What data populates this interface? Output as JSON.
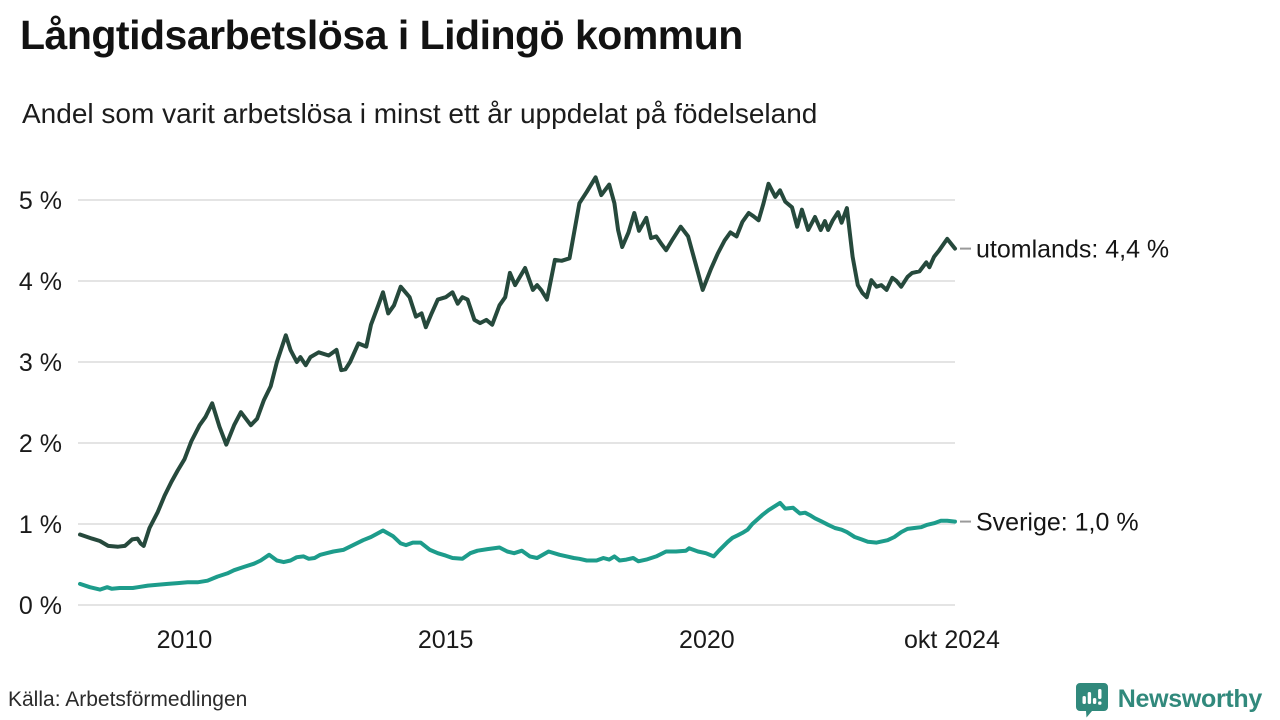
{
  "title": "Långtidsarbetslösa i Lidingö kommun",
  "subtitle": "Andel som varit arbetslösa i minst ett år uppdelat på födelseland",
  "source": "Källa: Arbetsförmedlingen",
  "branding": {
    "name": "Newsworthy",
    "color": "#31897c"
  },
  "chart_data": {
    "type": "line",
    "title": "Långtidsarbetslösa i Lidingö kommun",
    "subtitle": "Andel som varit arbetslösa i minst ett år uppdelat på födelseland",
    "xlabel": "",
    "ylabel": "",
    "grid": "horizontal",
    "grid_color": "#e4e4e4",
    "axis_text_color": "#1a1a1a",
    "x_range": [
      2008.0,
      2024.75
    ],
    "y_range": [
      0,
      5.4
    ],
    "x_ticks": [
      {
        "value": 2010,
        "label": "2010"
      },
      {
        "value": 2015,
        "label": "2015"
      },
      {
        "value": 2020,
        "label": "2020"
      },
      {
        "value": 2024.75,
        "label": "okt 2024"
      }
    ],
    "y_ticks": [
      {
        "value": 0,
        "label": "0 %"
      },
      {
        "value": 1,
        "label": "1 %"
      },
      {
        "value": 2,
        "label": "2 %"
      },
      {
        "value": 3,
        "label": "3 %"
      },
      {
        "value": 4,
        "label": "4 %"
      },
      {
        "value": 5,
        "label": "5 %"
      }
    ],
    "legend_position": "right-of-line-end",
    "series": [
      {
        "name": "utomlands",
        "end_label": "utomlands: 4,4 %",
        "last_value_text": "4,4 %",
        "color": "#26493c",
        "points": [
          [
            2008.0,
            0.87
          ],
          [
            2008.23,
            0.82
          ],
          [
            2008.38,
            0.79
          ],
          [
            2008.54,
            0.73
          ],
          [
            2008.73,
            0.72
          ],
          [
            2008.86,
            0.73
          ],
          [
            2009.0,
            0.81
          ],
          [
            2009.1,
            0.82
          ],
          [
            2009.16,
            0.76
          ],
          [
            2009.22,
            0.73
          ],
          [
            2009.33,
            0.95
          ],
          [
            2009.49,
            1.15
          ],
          [
            2009.62,
            1.35
          ],
          [
            2009.75,
            1.52
          ],
          [
            2009.87,
            1.66
          ],
          [
            2010.0,
            1.8
          ],
          [
            2010.13,
            2.02
          ],
          [
            2010.29,
            2.22
          ],
          [
            2010.4,
            2.32
          ],
          [
            2010.53,
            2.49
          ],
          [
            2010.67,
            2.2
          ],
          [
            2010.8,
            1.98
          ],
          [
            2010.95,
            2.22
          ],
          [
            2011.08,
            2.38
          ],
          [
            2011.27,
            2.22
          ],
          [
            2011.39,
            2.3
          ],
          [
            2011.52,
            2.53
          ],
          [
            2011.65,
            2.7
          ],
          [
            2011.77,
            3.0
          ],
          [
            2011.94,
            3.33
          ],
          [
            2012.03,
            3.15
          ],
          [
            2012.15,
            3.0
          ],
          [
            2012.22,
            3.06
          ],
          [
            2012.32,
            2.96
          ],
          [
            2012.41,
            3.06
          ],
          [
            2012.57,
            3.12
          ],
          [
            2012.76,
            3.08
          ],
          [
            2012.91,
            3.15
          ],
          [
            2013.0,
            2.9
          ],
          [
            2013.08,
            2.91
          ],
          [
            2013.17,
            3.0
          ],
          [
            2013.33,
            3.23
          ],
          [
            2013.48,
            3.19
          ],
          [
            2013.57,
            3.46
          ],
          [
            2013.71,
            3.7
          ],
          [
            2013.8,
            3.86
          ],
          [
            2013.9,
            3.6
          ],
          [
            2014.01,
            3.7
          ],
          [
            2014.14,
            3.93
          ],
          [
            2014.31,
            3.8
          ],
          [
            2014.43,
            3.56
          ],
          [
            2014.54,
            3.6
          ],
          [
            2014.62,
            3.43
          ],
          [
            2014.73,
            3.6
          ],
          [
            2014.85,
            3.77
          ],
          [
            2015.0,
            3.8
          ],
          [
            2015.13,
            3.86
          ],
          [
            2015.23,
            3.72
          ],
          [
            2015.32,
            3.8
          ],
          [
            2015.42,
            3.77
          ],
          [
            2015.55,
            3.52
          ],
          [
            2015.66,
            3.48
          ],
          [
            2015.78,
            3.52
          ],
          [
            2015.89,
            3.46
          ],
          [
            2016.03,
            3.7
          ],
          [
            2016.14,
            3.8
          ],
          [
            2016.23,
            4.1
          ],
          [
            2016.33,
            3.95
          ],
          [
            2016.42,
            4.05
          ],
          [
            2016.52,
            4.16
          ],
          [
            2016.67,
            3.89
          ],
          [
            2016.75,
            3.95
          ],
          [
            2016.84,
            3.88
          ],
          [
            2016.94,
            3.77
          ],
          [
            2017.09,
            4.26
          ],
          [
            2017.22,
            4.25
          ],
          [
            2017.37,
            4.28
          ],
          [
            2017.56,
            4.96
          ],
          [
            2017.7,
            5.1
          ],
          [
            2017.87,
            5.28
          ],
          [
            2017.98,
            5.06
          ],
          [
            2018.13,
            5.19
          ],
          [
            2018.23,
            4.96
          ],
          [
            2018.3,
            4.63
          ],
          [
            2018.38,
            4.42
          ],
          [
            2018.5,
            4.6
          ],
          [
            2018.61,
            4.84
          ],
          [
            2018.7,
            4.62
          ],
          [
            2018.84,
            4.78
          ],
          [
            2018.93,
            4.53
          ],
          [
            2019.03,
            4.55
          ],
          [
            2019.14,
            4.45
          ],
          [
            2019.22,
            4.38
          ],
          [
            2019.35,
            4.52
          ],
          [
            2019.5,
            4.67
          ],
          [
            2019.64,
            4.55
          ],
          [
            2019.79,
            4.2
          ],
          [
            2019.92,
            3.89
          ],
          [
            2020.08,
            4.15
          ],
          [
            2020.21,
            4.34
          ],
          [
            2020.34,
            4.5
          ],
          [
            2020.45,
            4.6
          ],
          [
            2020.57,
            4.55
          ],
          [
            2020.68,
            4.73
          ],
          [
            2020.8,
            4.84
          ],
          [
            2020.89,
            4.8
          ],
          [
            2020.99,
            4.75
          ],
          [
            2021.08,
            4.95
          ],
          [
            2021.18,
            5.2
          ],
          [
            2021.31,
            5.04
          ],
          [
            2021.4,
            5.12
          ],
          [
            2021.5,
            4.98
          ],
          [
            2021.63,
            4.91
          ],
          [
            2021.73,
            4.67
          ],
          [
            2021.82,
            4.88
          ],
          [
            2021.94,
            4.63
          ],
          [
            2022.07,
            4.79
          ],
          [
            2022.18,
            4.63
          ],
          [
            2022.26,
            4.74
          ],
          [
            2022.32,
            4.63
          ],
          [
            2022.41,
            4.75
          ],
          [
            2022.51,
            4.85
          ],
          [
            2022.58,
            4.72
          ],
          [
            2022.68,
            4.9
          ],
          [
            2022.79,
            4.3
          ],
          [
            2022.89,
            3.95
          ],
          [
            2022.98,
            3.85
          ],
          [
            2023.06,
            3.8
          ],
          [
            2023.15,
            4.01
          ],
          [
            2023.25,
            3.93
          ],
          [
            2023.34,
            3.95
          ],
          [
            2023.44,
            3.89
          ],
          [
            2023.55,
            4.04
          ],
          [
            2023.63,
            4.0
          ],
          [
            2023.72,
            3.93
          ],
          [
            2023.84,
            4.05
          ],
          [
            2023.93,
            4.1
          ],
          [
            2024.07,
            4.12
          ],
          [
            2024.2,
            4.23
          ],
          [
            2024.26,
            4.17
          ],
          [
            2024.35,
            4.3
          ],
          [
            2024.45,
            4.38
          ],
          [
            2024.6,
            4.52
          ],
          [
            2024.75,
            4.4
          ]
        ]
      },
      {
        "name": "Sverige",
        "end_label": "Sverige: 1,0 %",
        "last_value_text": "1,0 %",
        "color": "#1d9c8b",
        "points": [
          [
            2008.0,
            0.26
          ],
          [
            2008.19,
            0.22
          ],
          [
            2008.38,
            0.19
          ],
          [
            2008.52,
            0.22
          ],
          [
            2008.61,
            0.2
          ],
          [
            2008.76,
            0.21
          ],
          [
            2009.01,
            0.21
          ],
          [
            2009.11,
            0.22
          ],
          [
            2009.3,
            0.24
          ],
          [
            2009.49,
            0.25
          ],
          [
            2009.68,
            0.26
          ],
          [
            2009.87,
            0.27
          ],
          [
            2010.06,
            0.28
          ],
          [
            2010.25,
            0.28
          ],
          [
            2010.44,
            0.3
          ],
          [
            2010.63,
            0.35
          ],
          [
            2010.82,
            0.39
          ],
          [
            2010.95,
            0.43
          ],
          [
            2011.14,
            0.47
          ],
          [
            2011.33,
            0.51
          ],
          [
            2011.46,
            0.55
          ],
          [
            2011.62,
            0.62
          ],
          [
            2011.77,
            0.55
          ],
          [
            2011.9,
            0.53
          ],
          [
            2012.03,
            0.55
          ],
          [
            2012.15,
            0.59
          ],
          [
            2012.28,
            0.6
          ],
          [
            2012.38,
            0.57
          ],
          [
            2012.49,
            0.58
          ],
          [
            2012.6,
            0.62
          ],
          [
            2012.72,
            0.64
          ],
          [
            2012.85,
            0.66
          ],
          [
            2013.04,
            0.68
          ],
          [
            2013.23,
            0.74
          ],
          [
            2013.42,
            0.8
          ],
          [
            2013.57,
            0.84
          ],
          [
            2013.8,
            0.92
          ],
          [
            2013.99,
            0.85
          ],
          [
            2014.14,
            0.76
          ],
          [
            2014.24,
            0.74
          ],
          [
            2014.37,
            0.77
          ],
          [
            2014.52,
            0.77
          ],
          [
            2014.7,
            0.68
          ],
          [
            2014.85,
            0.64
          ],
          [
            2015.0,
            0.61
          ],
          [
            2015.13,
            0.58
          ],
          [
            2015.32,
            0.57
          ],
          [
            2015.47,
            0.64
          ],
          [
            2015.61,
            0.67
          ],
          [
            2015.8,
            0.69
          ],
          [
            2016.03,
            0.71
          ],
          [
            2016.18,
            0.66
          ],
          [
            2016.31,
            0.64
          ],
          [
            2016.46,
            0.67
          ],
          [
            2016.61,
            0.6
          ],
          [
            2016.75,
            0.58
          ],
          [
            2016.97,
            0.66
          ],
          [
            2017.18,
            0.62
          ],
          [
            2017.32,
            0.6
          ],
          [
            2017.45,
            0.58
          ],
          [
            2017.56,
            0.57
          ],
          [
            2017.7,
            0.55
          ],
          [
            2017.89,
            0.55
          ],
          [
            2018.02,
            0.58
          ],
          [
            2018.13,
            0.56
          ],
          [
            2018.23,
            0.6
          ],
          [
            2018.33,
            0.55
          ],
          [
            2018.46,
            0.56
          ],
          [
            2018.59,
            0.58
          ],
          [
            2018.69,
            0.54
          ],
          [
            2018.84,
            0.56
          ],
          [
            2019.03,
            0.6
          ],
          [
            2019.22,
            0.66
          ],
          [
            2019.41,
            0.66
          ],
          [
            2019.6,
            0.67
          ],
          [
            2019.66,
            0.7
          ],
          [
            2019.83,
            0.66
          ],
          [
            2019.98,
            0.64
          ],
          [
            2020.13,
            0.6
          ],
          [
            2020.23,
            0.67
          ],
          [
            2020.4,
            0.78
          ],
          [
            2020.49,
            0.83
          ],
          [
            2020.59,
            0.86
          ],
          [
            2020.68,
            0.89
          ],
          [
            2020.78,
            0.93
          ],
          [
            2020.87,
            1.0
          ],
          [
            2021.06,
            1.11
          ],
          [
            2021.18,
            1.17
          ],
          [
            2021.4,
            1.26
          ],
          [
            2021.5,
            1.19
          ],
          [
            2021.65,
            1.2
          ],
          [
            2021.78,
            1.13
          ],
          [
            2021.88,
            1.14
          ],
          [
            2021.97,
            1.11
          ],
          [
            2022.07,
            1.07
          ],
          [
            2022.2,
            1.03
          ],
          [
            2022.32,
            0.99
          ],
          [
            2022.45,
            0.95
          ],
          [
            2022.58,
            0.93
          ],
          [
            2022.68,
            0.9
          ],
          [
            2022.83,
            0.84
          ],
          [
            2022.96,
            0.81
          ],
          [
            2023.08,
            0.78
          ],
          [
            2023.25,
            0.77
          ],
          [
            2023.46,
            0.8
          ],
          [
            2023.59,
            0.84
          ],
          [
            2023.72,
            0.9
          ],
          [
            2023.84,
            0.94
          ],
          [
            2023.97,
            0.95
          ],
          [
            2024.1,
            0.96
          ],
          [
            2024.22,
            0.99
          ],
          [
            2024.35,
            1.01
          ],
          [
            2024.48,
            1.04
          ],
          [
            2024.6,
            1.04
          ],
          [
            2024.75,
            1.03
          ]
        ]
      }
    ]
  }
}
